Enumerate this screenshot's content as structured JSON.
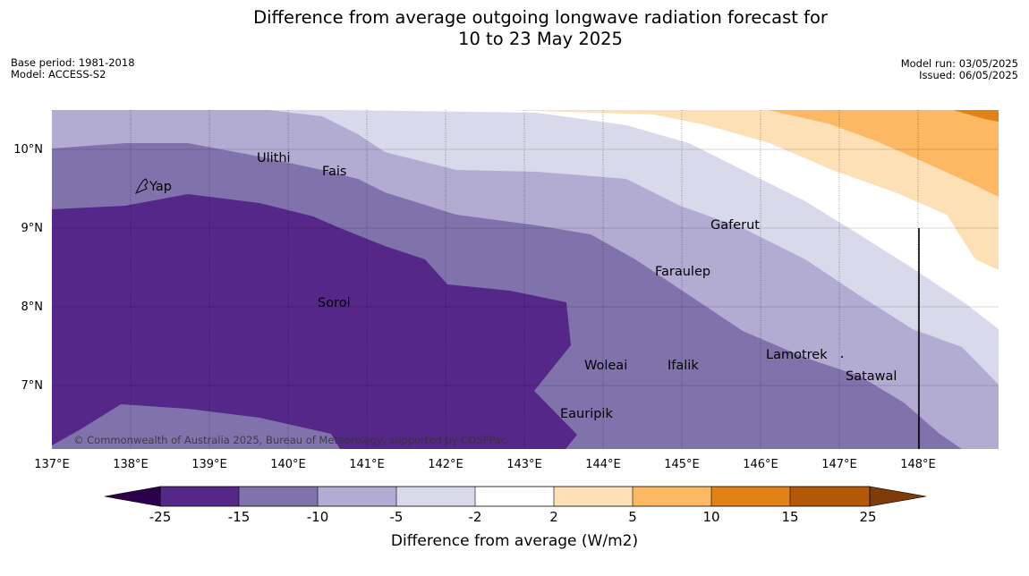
{
  "header": {
    "title_line1": "Difference from average outgoing longwave radiation forecast for",
    "title_line2": "10 to 23 May 2025",
    "base_period": "Base period: 1981-2018",
    "model": "Model: ACCESS-S2",
    "model_run": "Model run: 03/05/2025",
    "issued": "Issued: 06/05/2025"
  },
  "map": {
    "lon_range": [
      137,
      149
    ],
    "lat_range": [
      6.2,
      10.5
    ],
    "lon_ticks": [
      "137°E",
      "138°E",
      "139°E",
      "140°E",
      "141°E",
      "142°E",
      "143°E",
      "144°E",
      "145°E",
      "146°E",
      "147°E",
      "148°E"
    ],
    "lat_ticks": [
      "10°N",
      "9°N",
      "8°N",
      "7°N"
    ],
    "places": [
      {
        "name": "Yap",
        "lon": 138.1,
        "lat": 9.55
      },
      {
        "name": "Ulithi",
        "lon": 139.6,
        "lat": 9.9
      },
      {
        "name": "Fais",
        "lon": 140.4,
        "lat": 9.75
      },
      {
        "name": "Gaferut",
        "lon": 145.4,
        "lat": 9.05
      },
      {
        "name": "Faraulep",
        "lon": 144.8,
        "lat": 8.45
      },
      {
        "name": "Sorol",
        "lon": 140.3,
        "lat": 8.05
      },
      {
        "name": "Lamotrek",
        "lon": 146.1,
        "lat": 7.4
      },
      {
        "name": "Woleai",
        "lon": 143.75,
        "lat": 7.3
      },
      {
        "name": "Ifalik",
        "lon": 144.8,
        "lat": 7.3
      },
      {
        "name": "Satawal",
        "lon": 147.1,
        "lat": 7.15
      },
      {
        "name": "Eauripik",
        "lon": 143.5,
        "lat": 6.7
      }
    ],
    "copyright": "© Commonwealth of Australia 2025, Bureau of Meteorology, supported by COSPPac"
  },
  "colorbar": {
    "title": "Difference from average (W/m2)",
    "labels": [
      "-25",
      "-15",
      "-10",
      "-5",
      "-2",
      "2",
      "5",
      "10",
      "15",
      "25"
    ],
    "colors": [
      "#542788",
      "#8073ac",
      "#b2abd2",
      "#d8daeb",
      "#ffffff",
      "#fee0b6",
      "#fdb863",
      "#e08214",
      "#b35806"
    ],
    "under_color": "#2d004b",
    "over_color": "#7f3b08"
  }
}
